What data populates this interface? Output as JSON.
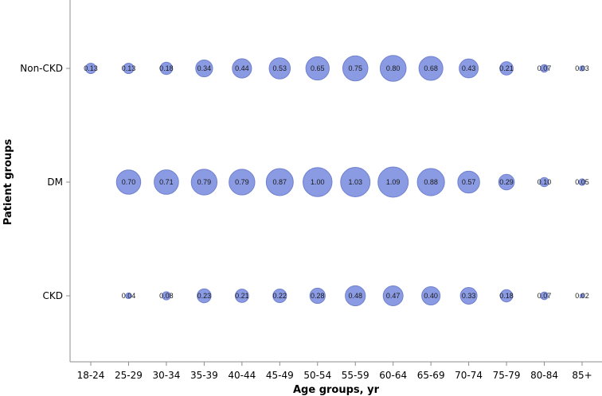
{
  "chart_data": {
    "type": "bubble",
    "title": "",
    "xlabel": "Age groups, yr",
    "ylabel": "Patient groups",
    "categories": [
      "18-24",
      "25-29",
      "30-34",
      "35-39",
      "40-44",
      "45-49",
      "50-54",
      "55-59",
      "60-64",
      "65-69",
      "70-74",
      "75-79",
      "80-84",
      "85+"
    ],
    "groups": [
      "Non-CKD",
      "DM",
      "CKD"
    ],
    "grid": false,
    "bubble_color": "#8b9be3",
    "series": [
      {
        "group": "Non-CKD",
        "values": [
          0.13,
          0.13,
          0.18,
          0.34,
          0.44,
          0.53,
          0.65,
          0.75,
          0.8,
          0.68,
          0.43,
          0.21,
          0.07,
          0.03
        ]
      },
      {
        "group": "DM",
        "values": [
          null,
          0.7,
          0.71,
          0.79,
          0.79,
          0.87,
          1.0,
          1.03,
          1.09,
          0.88,
          0.57,
          0.29,
          0.1,
          0.05
        ]
      },
      {
        "group": "CKD",
        "values": [
          null,
          0.04,
          0.08,
          0.23,
          0.21,
          0.22,
          0.28,
          0.48,
          0.47,
          0.4,
          0.33,
          0.18,
          0.07,
          0.02
        ]
      }
    ]
  }
}
